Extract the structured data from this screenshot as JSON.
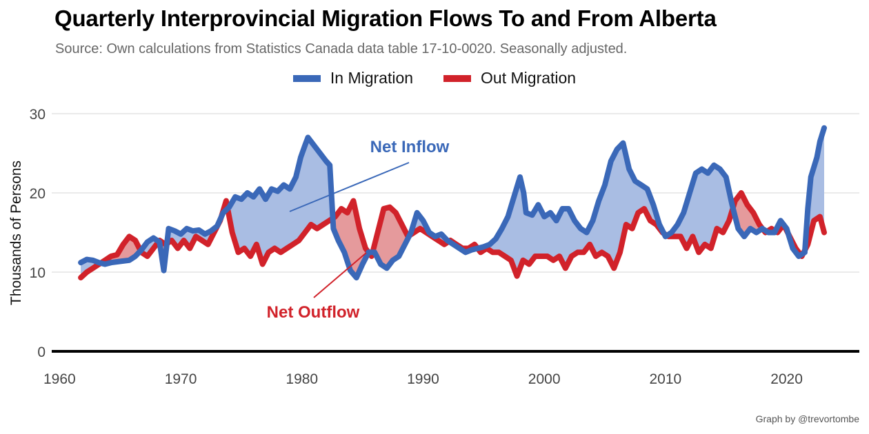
{
  "title": "Quarterly Interprovincial Migration Flows To and From Alberta",
  "subtitle": "Source: Own calculations from Statistics Canada data table 17-10-0020. Seasonally adjusted.",
  "caption": "Graph by @trevortombe",
  "colors": {
    "in": "#3a68b8",
    "out": "#d1222a",
    "inFill": "#a9bde3",
    "outFill": "#e59a9c"
  },
  "chart_data": {
    "type": "line",
    "title": "Quarterly Interprovincial Migration Flows To and From Alberta",
    "ylabel": "Thousands of Persons",
    "xlabel": "",
    "xlim": [
      1958.5,
      2026
    ],
    "ylim": [
      0,
      30
    ],
    "xticks": [
      1960,
      1970,
      1980,
      1990,
      2000,
      2010,
      2020
    ],
    "yticks": [
      0,
      10,
      20,
      30
    ],
    "grid": true,
    "legend_position": "top",
    "series": [
      {
        "name": "In Migration",
        "color": "#3a68b8",
        "points": [
          [
            1961.75,
            11.2
          ],
          [
            1962.25,
            11.6
          ],
          [
            1962.75,
            11.5
          ],
          [
            1963.25,
            11.2
          ],
          [
            1963.75,
            11
          ],
          [
            1964.25,
            11.2
          ],
          [
            1964.75,
            11.3
          ],
          [
            1965.25,
            11.4
          ],
          [
            1965.75,
            11.5
          ],
          [
            1966.25,
            12
          ],
          [
            1966.75,
            12.8
          ],
          [
            1967.25,
            13.8
          ],
          [
            1967.75,
            14.3
          ],
          [
            1968.25,
            13.8
          ],
          [
            1968.6,
            10.2
          ],
          [
            1969.0,
            15.5
          ],
          [
            1969.5,
            15.2
          ],
          [
            1970.0,
            14.8
          ],
          [
            1970.5,
            15.5
          ],
          [
            1971.0,
            15.2
          ],
          [
            1971.5,
            15.3
          ],
          [
            1972.0,
            14.8
          ],
          [
            1972.5,
            15.2
          ],
          [
            1973.0,
            15.8
          ],
          [
            1973.5,
            17.5
          ],
          [
            1974.0,
            18.2
          ],
          [
            1974.5,
            19.5
          ],
          [
            1975.0,
            19.2
          ],
          [
            1975.5,
            20.0
          ],
          [
            1976.0,
            19.5
          ],
          [
            1976.5,
            20.5
          ],
          [
            1977.0,
            19.2
          ],
          [
            1977.5,
            20.5
          ],
          [
            1978.0,
            20.2
          ],
          [
            1978.5,
            21.0
          ],
          [
            1979.0,
            20.5
          ],
          [
            1979.5,
            22.0
          ],
          [
            1979.9,
            24.5
          ],
          [
            1980.25,
            26.0
          ],
          [
            1980.5,
            27.0
          ],
          [
            1981.0,
            26.0
          ],
          [
            1981.5,
            25.0
          ],
          [
            1982.0,
            24.0
          ],
          [
            1982.3,
            23.5
          ],
          [
            1982.6,
            15.5
          ],
          [
            1983.0,
            14.0
          ],
          [
            1983.5,
            12.5
          ],
          [
            1984.0,
            10.2
          ],
          [
            1984.5,
            9.3
          ],
          [
            1985.0,
            11.0
          ],
          [
            1985.5,
            12.5
          ],
          [
            1986.0,
            12.5
          ],
          [
            1986.5,
            11.0
          ],
          [
            1987.0,
            10.5
          ],
          [
            1987.5,
            11.5
          ],
          [
            1988.0,
            12.0
          ],
          [
            1988.5,
            13.5
          ],
          [
            1989.0,
            15.0
          ],
          [
            1989.5,
            17.5
          ],
          [
            1990.0,
            16.5
          ],
          [
            1990.5,
            15.0
          ],
          [
            1991.0,
            14.5
          ],
          [
            1991.5,
            14.8
          ],
          [
            1992.0,
            14.0
          ],
          [
            1992.5,
            13.5
          ],
          [
            1993.0,
            13.0
          ],
          [
            1993.5,
            12.5
          ],
          [
            1994.0,
            12.8
          ],
          [
            1994.5,
            13.0
          ],
          [
            1995.0,
            13.2
          ],
          [
            1995.5,
            13.5
          ],
          [
            1996.0,
            14.2
          ],
          [
            1996.5,
            15.5
          ],
          [
            1997.0,
            17.0
          ],
          [
            1997.5,
            19.5
          ],
          [
            1998.0,
            22.0
          ],
          [
            1998.3,
            20.0
          ],
          [
            1998.5,
            17.5
          ],
          [
            1999.0,
            17.2
          ],
          [
            1999.5,
            18.5
          ],
          [
            2000.0,
            17.0
          ],
          [
            2000.5,
            17.5
          ],
          [
            2001.0,
            16.5
          ],
          [
            2001.5,
            18.0
          ],
          [
            2002.0,
            18.0
          ],
          [
            2002.5,
            16.5
          ],
          [
            2003.0,
            15.5
          ],
          [
            2003.5,
            15.0
          ],
          [
            2004.0,
            16.5
          ],
          [
            2004.5,
            19.0
          ],
          [
            2005.0,
            21.0
          ],
          [
            2005.5,
            24.0
          ],
          [
            2006.0,
            25.5
          ],
          [
            2006.5,
            26.3
          ],
          [
            2007.0,
            23.0
          ],
          [
            2007.5,
            21.5
          ],
          [
            2008.0,
            21.0
          ],
          [
            2008.5,
            20.5
          ],
          [
            2009.0,
            18.5
          ],
          [
            2009.5,
            16.0
          ],
          [
            2010.0,
            14.5
          ],
          [
            2010.5,
            15.0
          ],
          [
            2011.0,
            16.0
          ],
          [
            2011.5,
            17.5
          ],
          [
            2012.0,
            20.0
          ],
          [
            2012.5,
            22.5
          ],
          [
            2013.0,
            23.0
          ],
          [
            2013.5,
            22.5
          ],
          [
            2014.0,
            23.5
          ],
          [
            2014.5,
            23.0
          ],
          [
            2015.0,
            22.0
          ],
          [
            2015.5,
            18.5
          ],
          [
            2016.0,
            15.5
          ],
          [
            2016.5,
            14.5
          ],
          [
            2017.0,
            15.5
          ],
          [
            2017.5,
            15.0
          ],
          [
            2018.0,
            15.5
          ],
          [
            2018.5,
            15.0
          ],
          [
            2019.0,
            15.0
          ],
          [
            2019.5,
            16.5
          ],
          [
            2020.0,
            15.5
          ],
          [
            2020.5,
            13.0
          ],
          [
            2021.0,
            12.0
          ],
          [
            2021.5,
            12.5
          ],
          [
            2021.75,
            18.0
          ],
          [
            2022.0,
            22.0
          ],
          [
            2022.5,
            24.5
          ],
          [
            2022.75,
            26.5
          ],
          [
            2023.1,
            28.2
          ]
        ]
      },
      {
        "name": "Out Migration",
        "color": "#d1222a",
        "points": [
          [
            1961.75,
            9.3
          ],
          [
            1962.25,
            10.0
          ],
          [
            1962.75,
            10.5
          ],
          [
            1963.25,
            11.0
          ],
          [
            1963.75,
            11.5
          ],
          [
            1964.25,
            12.0
          ],
          [
            1964.75,
            12.2
          ],
          [
            1965.25,
            13.5
          ],
          [
            1965.75,
            14.5
          ],
          [
            1966.25,
            14.0
          ],
          [
            1966.75,
            12.5
          ],
          [
            1967.25,
            12.0
          ],
          [
            1967.75,
            13.0
          ],
          [
            1968.25,
            14.0
          ],
          [
            1968.75,
            13.5
          ],
          [
            1969.25,
            14.0
          ],
          [
            1969.75,
            13.0
          ],
          [
            1970.25,
            14.0
          ],
          [
            1970.75,
            13.0
          ],
          [
            1971.25,
            14.5
          ],
          [
            1971.75,
            14.0
          ],
          [
            1972.25,
            13.5
          ],
          [
            1972.75,
            15.0
          ],
          [
            1973.25,
            16.5
          ],
          [
            1973.75,
            19.0
          ],
          [
            1974.25,
            15.0
          ],
          [
            1974.75,
            12.5
          ],
          [
            1975.25,
            13.0
          ],
          [
            1975.75,
            12.0
          ],
          [
            1976.25,
            13.5
          ],
          [
            1976.75,
            11.0
          ],
          [
            1977.25,
            12.5
          ],
          [
            1977.75,
            13.0
          ],
          [
            1978.25,
            12.5
          ],
          [
            1978.75,
            13.0
          ],
          [
            1979.25,
            13.5
          ],
          [
            1979.75,
            14.0
          ],
          [
            1980.25,
            15.0
          ],
          [
            1980.75,
            16.0
          ],
          [
            1981.25,
            15.5
          ],
          [
            1981.75,
            16.0
          ],
          [
            1982.25,
            16.5
          ],
          [
            1982.75,
            17.0
          ],
          [
            1983.25,
            18.0
          ],
          [
            1983.75,
            17.5
          ],
          [
            1984.25,
            19.0
          ],
          [
            1984.75,
            15.5
          ],
          [
            1985.25,
            13.0
          ],
          [
            1985.75,
            12.0
          ],
          [
            1986.25,
            15.0
          ],
          [
            1986.75,
            18.0
          ],
          [
            1987.25,
            18.2
          ],
          [
            1987.75,
            17.5
          ],
          [
            1988.25,
            16.0
          ],
          [
            1988.75,
            14.5
          ],
          [
            1989.25,
            15.0
          ],
          [
            1989.75,
            15.5
          ],
          [
            1990.25,
            15.0
          ],
          [
            1990.75,
            14.5
          ],
          [
            1991.25,
            14.0
          ],
          [
            1991.75,
            13.5
          ],
          [
            1992.25,
            14.0
          ],
          [
            1992.75,
            13.5
          ],
          [
            1993.25,
            13.0
          ],
          [
            1993.75,
            13.0
          ],
          [
            1994.25,
            13.5
          ],
          [
            1994.75,
            12.5
          ],
          [
            1995.25,
            13.0
          ],
          [
            1995.75,
            12.5
          ],
          [
            1996.25,
            12.5
          ],
          [
            1996.75,
            12.0
          ],
          [
            1997.25,
            11.5
          ],
          [
            1997.75,
            9.5
          ],
          [
            1998.25,
            11.5
          ],
          [
            1998.75,
            11.0
          ],
          [
            1999.25,
            12.0
          ],
          [
            1999.75,
            12.0
          ],
          [
            2000.25,
            12.0
          ],
          [
            2000.75,
            11.5
          ],
          [
            2001.25,
            12.0
          ],
          [
            2001.75,
            10.5
          ],
          [
            2002.25,
            12.0
          ],
          [
            2002.75,
            12.5
          ],
          [
            2003.25,
            12.5
          ],
          [
            2003.75,
            13.5
          ],
          [
            2004.25,
            12.0
          ],
          [
            2004.75,
            12.5
          ],
          [
            2005.25,
            12.0
          ],
          [
            2005.75,
            10.5
          ],
          [
            2006.25,
            12.5
          ],
          [
            2006.75,
            16.0
          ],
          [
            2007.25,
            15.5
          ],
          [
            2007.75,
            17.5
          ],
          [
            2008.25,
            18.0
          ],
          [
            2008.75,
            16.5
          ],
          [
            2009.25,
            16.0
          ],
          [
            2009.75,
            15.0
          ],
          [
            2010.25,
            14.5
          ],
          [
            2010.75,
            14.5
          ],
          [
            2011.25,
            14.5
          ],
          [
            2011.75,
            13.0
          ],
          [
            2012.25,
            14.5
          ],
          [
            2012.75,
            12.5
          ],
          [
            2013.25,
            13.5
          ],
          [
            2013.75,
            13.0
          ],
          [
            2014.25,
            15.5
          ],
          [
            2014.75,
            15.0
          ],
          [
            2015.25,
            16.5
          ],
          [
            2015.75,
            19.0
          ],
          [
            2016.25,
            20.0
          ],
          [
            2016.75,
            18.5
          ],
          [
            2017.25,
            17.5
          ],
          [
            2017.75,
            16.0
          ],
          [
            2018.25,
            15.0
          ],
          [
            2018.75,
            15.5
          ],
          [
            2019.25,
            15.0
          ],
          [
            2019.75,
            16.0
          ],
          [
            2020.25,
            14.5
          ],
          [
            2020.75,
            13.0
          ],
          [
            2021.25,
            12.0
          ],
          [
            2021.75,
            13.5
          ],
          [
            2022.25,
            16.5
          ],
          [
            2022.75,
            17.0
          ],
          [
            2023.1,
            15.0
          ]
        ]
      }
    ],
    "annotations": [
      {
        "text": "Net Inflow",
        "color": "#3a68b8"
      },
      {
        "text": "Net Outflow",
        "color": "#d1222a"
      }
    ]
  }
}
